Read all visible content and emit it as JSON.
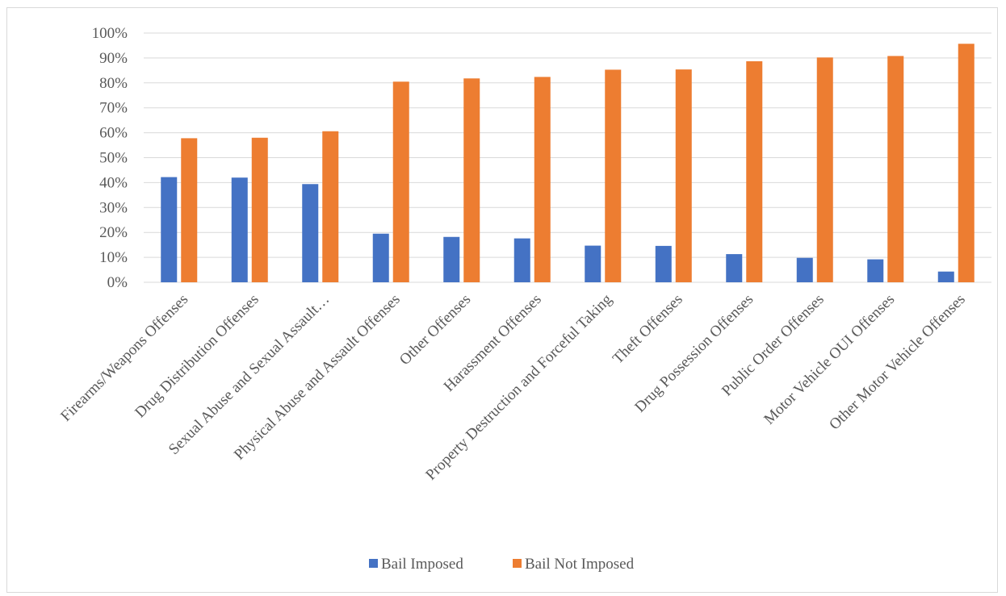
{
  "chart_data": {
    "type": "bar",
    "title": "",
    "xlabel": "",
    "ylabel": "",
    "ylim": [
      0,
      100
    ],
    "y_tick_step": 10,
    "y_tick_suffix": "%",
    "grid": true,
    "legend_position": "bottom",
    "categories": [
      "Firearms/Weapons Offenses",
      "Drug Distribution Offenses",
      "Sexual Abuse and Sexual Assault…",
      "Physical Abuse and Assault Offenses",
      "Other Offenses",
      "Harassment Offenses",
      "Property Destruction and Forceful Taking",
      "Theft Offenses",
      "Drug Possession Offenses",
      "Public Order Offenses",
      "Motor Vehicle OUI Offenses",
      "Other Motor Vehicle Offenses"
    ],
    "series": [
      {
        "name": "Bail Imposed",
        "color": "#4472c4",
        "values": [
          42.2,
          42.0,
          39.4,
          19.5,
          18.2,
          17.6,
          14.7,
          14.6,
          11.3,
          9.8,
          9.2,
          4.3
        ]
      },
      {
        "name": "Bail Not Imposed",
        "color": "#ed7d31",
        "values": [
          57.8,
          58.0,
          60.6,
          80.5,
          81.8,
          82.4,
          85.3,
          85.4,
          88.7,
          90.2,
          90.8,
          95.7
        ]
      }
    ]
  }
}
